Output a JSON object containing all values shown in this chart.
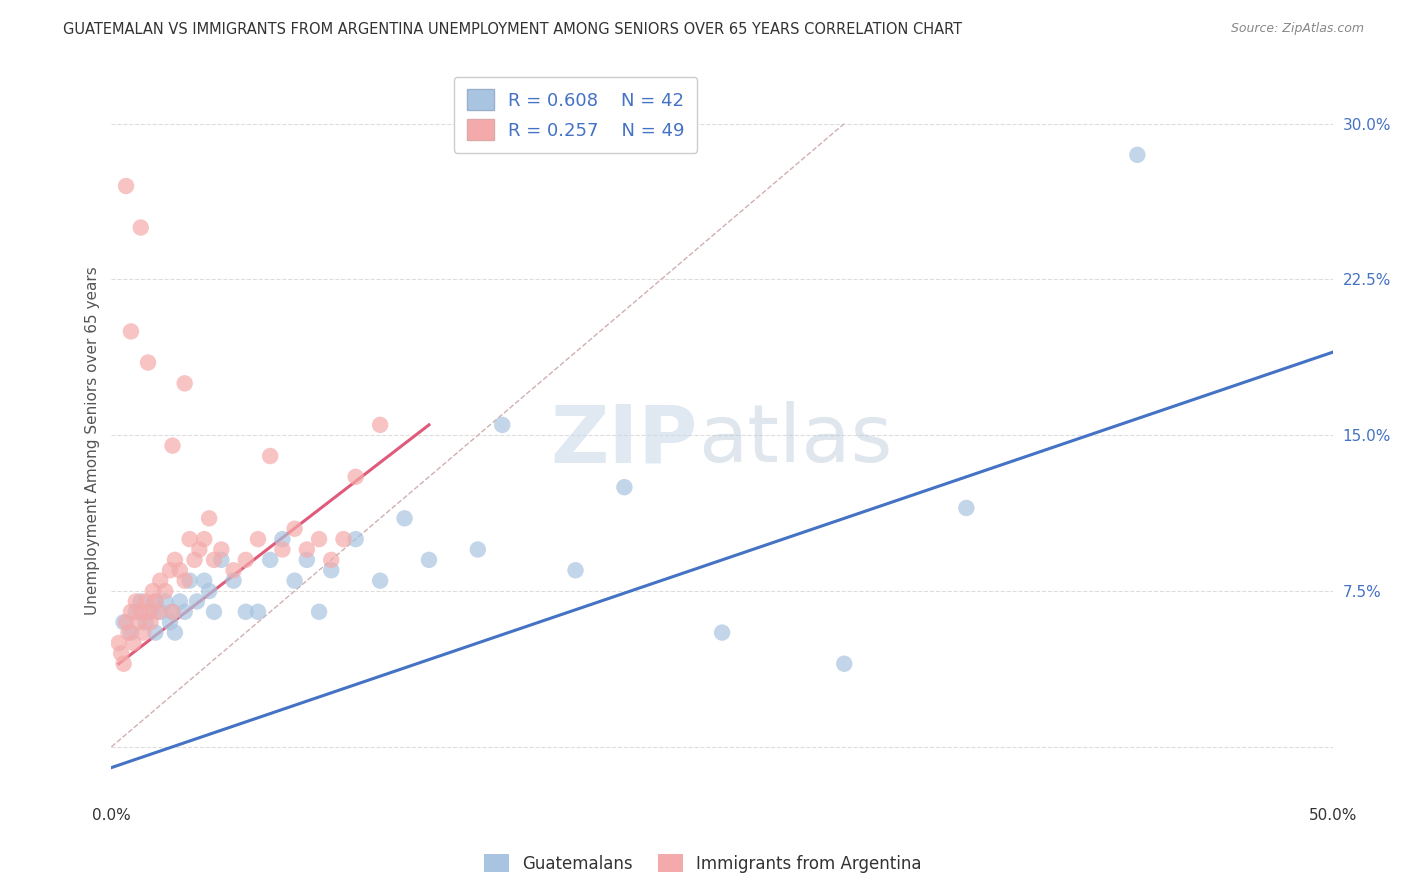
{
  "title": "GUATEMALAN VS IMMIGRANTS FROM ARGENTINA UNEMPLOYMENT AMONG SENIORS OVER 65 YEARS CORRELATION CHART",
  "source": "Source: ZipAtlas.com",
  "ylabel": "Unemployment Among Seniors over 65 years",
  "xlim": [
    0.0,
    0.5
  ],
  "ylim": [
    -0.025,
    0.32
  ],
  "xticks": [
    0.0,
    0.1,
    0.2,
    0.3,
    0.4,
    0.5
  ],
  "yticks": [
    0.0,
    0.075,
    0.15,
    0.225,
    0.3
  ],
  "ytick_labels": [
    "",
    "7.5%",
    "15.0%",
    "22.5%",
    "30.0%"
  ],
  "blue_R": 0.608,
  "blue_N": 42,
  "pink_R": 0.257,
  "pink_N": 49,
  "blue_color": "#a8c4e0",
  "pink_color": "#f4aaaa",
  "blue_line_color": "#4472c4",
  "pink_line_color": "#e05a7a",
  "diagonal_color": "#d0b0b0",
  "watermark": "ZIPatlas",
  "blue_scatter_x": [
    0.005,
    0.008,
    0.01,
    0.012,
    0.014,
    0.016,
    0.018,
    0.018,
    0.02,
    0.022,
    0.024,
    0.025,
    0.026,
    0.028,
    0.03,
    0.032,
    0.035,
    0.038,
    0.04,
    0.042,
    0.045,
    0.05,
    0.055,
    0.06,
    0.065,
    0.07,
    0.075,
    0.08,
    0.085,
    0.09,
    0.1,
    0.11,
    0.12,
    0.13,
    0.15,
    0.16,
    0.19,
    0.21,
    0.25,
    0.3,
    0.35,
    0.42
  ],
  "blue_scatter_y": [
    0.06,
    0.055,
    0.065,
    0.07,
    0.06,
    0.065,
    0.055,
    0.07,
    0.065,
    0.07,
    0.06,
    0.065,
    0.055,
    0.07,
    0.065,
    0.08,
    0.07,
    0.08,
    0.075,
    0.065,
    0.09,
    0.08,
    0.065,
    0.065,
    0.09,
    0.1,
    0.08,
    0.09,
    0.065,
    0.085,
    0.1,
    0.08,
    0.11,
    0.09,
    0.095,
    0.155,
    0.085,
    0.125,
    0.055,
    0.04,
    0.115,
    0.285
  ],
  "pink_scatter_x": [
    0.003,
    0.004,
    0.005,
    0.006,
    0.007,
    0.008,
    0.009,
    0.01,
    0.011,
    0.012,
    0.013,
    0.014,
    0.015,
    0.016,
    0.017,
    0.018,
    0.019,
    0.02,
    0.022,
    0.024,
    0.025,
    0.026,
    0.028,
    0.03,
    0.032,
    0.034,
    0.036,
    0.038,
    0.04,
    0.042,
    0.045,
    0.05,
    0.055,
    0.06,
    0.065,
    0.07,
    0.075,
    0.08,
    0.085,
    0.09,
    0.095,
    0.1,
    0.11,
    0.025,
    0.03,
    0.015,
    0.012,
    0.008,
    0.006
  ],
  "pink_scatter_y": [
    0.05,
    0.045,
    0.04,
    0.06,
    0.055,
    0.065,
    0.05,
    0.07,
    0.06,
    0.065,
    0.055,
    0.07,
    0.065,
    0.06,
    0.075,
    0.07,
    0.065,
    0.08,
    0.075,
    0.085,
    0.065,
    0.09,
    0.085,
    0.08,
    0.1,
    0.09,
    0.095,
    0.1,
    0.11,
    0.09,
    0.095,
    0.085,
    0.09,
    0.1,
    0.14,
    0.095,
    0.105,
    0.095,
    0.1,
    0.09,
    0.1,
    0.13,
    0.155,
    0.145,
    0.175,
    0.185,
    0.25,
    0.2,
    0.27
  ],
  "blue_line_x": [
    0.0,
    0.5
  ],
  "blue_line_y_start": -0.01,
  "blue_line_y_end": 0.19,
  "pink_line_x": [
    0.003,
    0.13
  ],
  "pink_line_y_start": 0.04,
  "pink_line_y_end": 0.155,
  "diag_line_x": [
    0.0,
    0.3
  ],
  "diag_line_y": [
    0.0,
    0.3
  ]
}
